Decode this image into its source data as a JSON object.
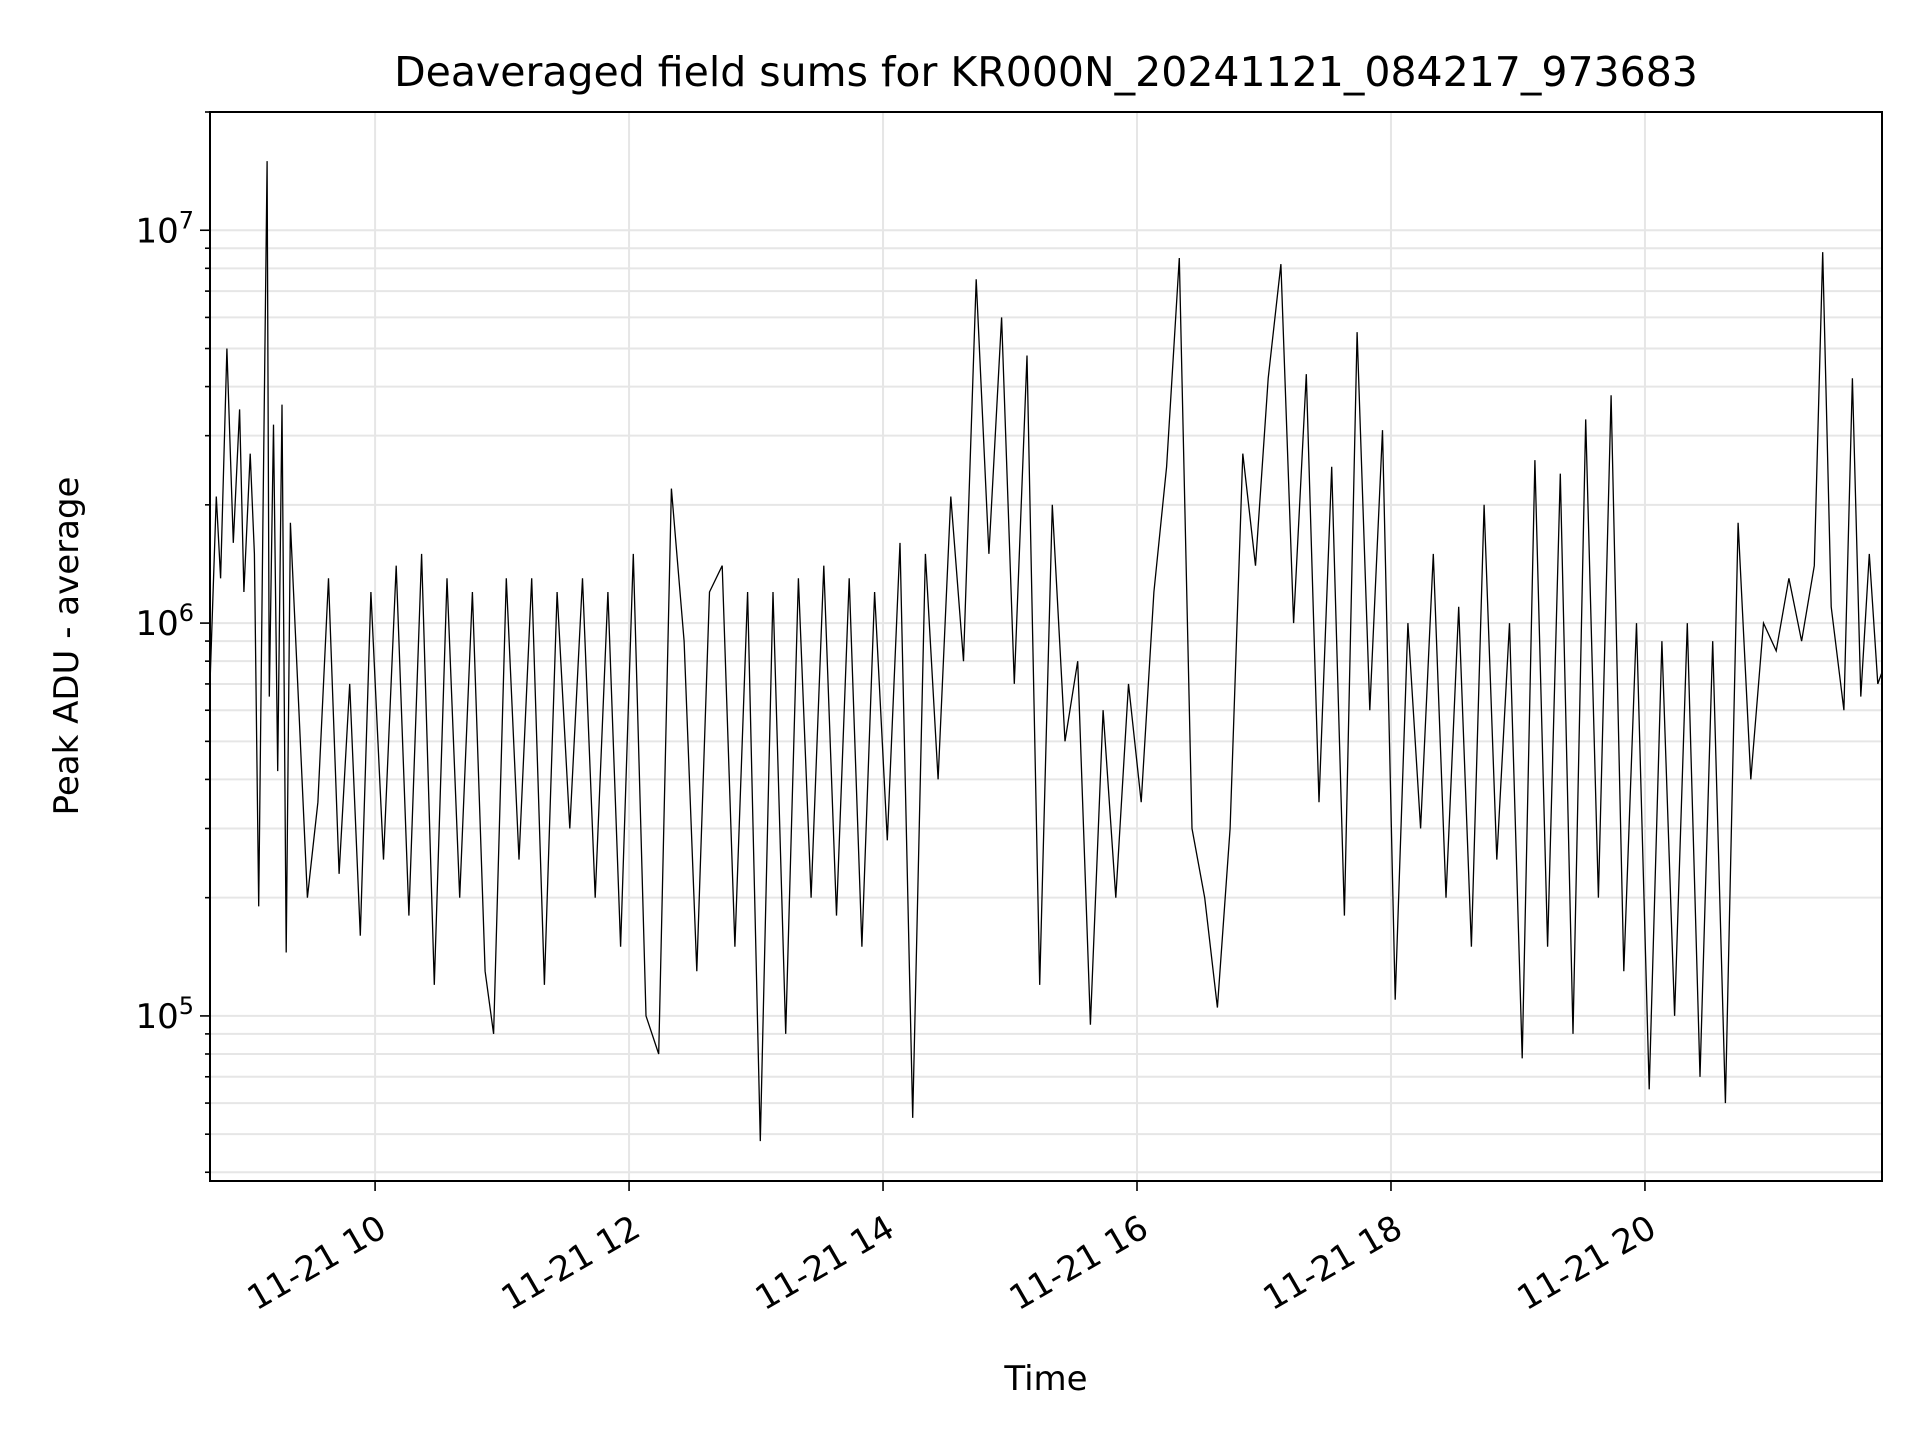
{
  "chart_data": {
    "type": "line",
    "title": "Deaveraged field sums for KR000N_20241121_084217_973683",
    "xlabel": "Time",
    "ylabel": "Peak ADU - average",
    "yscale": "log",
    "ylim": [
      38000,
      20000000
    ],
    "xlim": [
      "2024-11-21 08:42",
      "2024-11-21 21:52"
    ],
    "x_ticks": [
      "11-21 10",
      "11-21 12",
      "11-21 14",
      "11-21 16",
      "11-21 18",
      "11-21 20"
    ],
    "x_tick_times": [
      "2024-11-21 10:00",
      "2024-11-21 12:00",
      "2024-11-21 14:00",
      "2024-11-21 16:00",
      "2024-11-21 18:00",
      "2024-11-21 20:00"
    ],
    "y_ticks": [
      {
        "base": "10",
        "exp": "5",
        "value": 100000
      },
      {
        "base": "10",
        "exp": "6",
        "value": 1000000
      },
      {
        "base": "10",
        "exp": "7",
        "value": 10000000
      }
    ],
    "grid": true,
    "line_color": "#000000",
    "series": [
      {
        "values": [
          [
            "2024-11-21 08:42",
            700000
          ],
          [
            "2024-11-21 08:45",
            2100000
          ],
          [
            "2024-11-21 08:47",
            1300000
          ],
          [
            "2024-11-21 08:50",
            5000000
          ],
          [
            "2024-11-21 08:53",
            1600000
          ],
          [
            "2024-11-21 08:56",
            3500000
          ],
          [
            "2024-11-21 08:58",
            1200000
          ],
          [
            "2024-11-21 09:01",
            2700000
          ],
          [
            "2024-11-21 09:03",
            1500000
          ],
          [
            "2024-11-21 09:05",
            190000
          ],
          [
            "2024-11-21 09:07",
            1800000
          ],
          [
            "2024-11-21 09:09",
            15000000
          ],
          [
            "2024-11-21 09:10",
            650000
          ],
          [
            "2024-11-21 09:12",
            3200000
          ],
          [
            "2024-11-21 09:14",
            420000
          ],
          [
            "2024-11-21 09:16",
            3600000
          ],
          [
            "2024-11-21 09:18",
            145000
          ],
          [
            "2024-11-21 09:20",
            1800000
          ],
          [
            "2024-11-21 09:24",
            600000
          ],
          [
            "2024-11-21 09:28",
            200000
          ],
          [
            "2024-11-21 09:33",
            350000
          ],
          [
            "2024-11-21 09:38",
            1300000
          ],
          [
            "2024-11-21 09:43",
            230000
          ],
          [
            "2024-11-21 09:48",
            700000
          ],
          [
            "2024-11-21 09:53",
            160000
          ],
          [
            "2024-11-21 09:58",
            1200000
          ],
          [
            "2024-11-21 10:04",
            250000
          ],
          [
            "2024-11-21 10:10",
            1400000
          ],
          [
            "2024-11-21 10:16",
            180000
          ],
          [
            "2024-11-21 10:22",
            1500000
          ],
          [
            "2024-11-21 10:28",
            120000
          ],
          [
            "2024-11-21 10:34",
            1300000
          ],
          [
            "2024-11-21 10:40",
            200000
          ],
          [
            "2024-11-21 10:46",
            1200000
          ],
          [
            "2024-11-21 10:52",
            130000
          ],
          [
            "2024-11-21 10:56",
            90000
          ],
          [
            "2024-11-21 11:02",
            1300000
          ],
          [
            "2024-11-21 11:08",
            250000
          ],
          [
            "2024-11-21 11:14",
            1300000
          ],
          [
            "2024-11-21 11:20",
            120000
          ],
          [
            "2024-11-21 11:26",
            1200000
          ],
          [
            "2024-11-21 11:32",
            300000
          ],
          [
            "2024-11-21 11:38",
            1300000
          ],
          [
            "2024-11-21 11:44",
            200000
          ],
          [
            "2024-11-21 11:50",
            1200000
          ],
          [
            "2024-11-21 11:56",
            150000
          ],
          [
            "2024-11-21 12:02",
            1500000
          ],
          [
            "2024-11-21 12:08",
            100000
          ],
          [
            "2024-11-21 12:14",
            80000
          ],
          [
            "2024-11-21 12:20",
            2200000
          ],
          [
            "2024-11-21 12:26",
            900000
          ],
          [
            "2024-11-21 12:32",
            130000
          ],
          [
            "2024-11-21 12:38",
            1200000
          ],
          [
            "2024-11-21 12:44",
            1400000
          ],
          [
            "2024-11-21 12:50",
            150000
          ],
          [
            "2024-11-21 12:56",
            1200000
          ],
          [
            "2024-11-21 13:02",
            48000
          ],
          [
            "2024-11-21 13:08",
            1200000
          ],
          [
            "2024-11-21 13:14",
            90000
          ],
          [
            "2024-11-21 13:20",
            1300000
          ],
          [
            "2024-11-21 13:26",
            200000
          ],
          [
            "2024-11-21 13:32",
            1400000
          ],
          [
            "2024-11-21 13:38",
            180000
          ],
          [
            "2024-11-21 13:44",
            1300000
          ],
          [
            "2024-11-21 13:50",
            150000
          ],
          [
            "2024-11-21 13:56",
            1200000
          ],
          [
            "2024-11-21 14:02",
            280000
          ],
          [
            "2024-11-21 14:08",
            1600000
          ],
          [
            "2024-11-21 14:14",
            55000
          ],
          [
            "2024-11-21 14:20",
            1500000
          ],
          [
            "2024-11-21 14:26",
            400000
          ],
          [
            "2024-11-21 14:32",
            2100000
          ],
          [
            "2024-11-21 14:38",
            800000
          ],
          [
            "2024-11-21 14:44",
            7500000
          ],
          [
            "2024-11-21 14:50",
            1500000
          ],
          [
            "2024-11-21 14:56",
            6000000
          ],
          [
            "2024-11-21 15:02",
            700000
          ],
          [
            "2024-11-21 15:08",
            4800000
          ],
          [
            "2024-11-21 15:14",
            120000
          ],
          [
            "2024-11-21 15:20",
            2000000
          ],
          [
            "2024-11-21 15:26",
            500000
          ],
          [
            "2024-11-21 15:32",
            800000
          ],
          [
            "2024-11-21 15:38",
            95000
          ],
          [
            "2024-11-21 15:44",
            600000
          ],
          [
            "2024-11-21 15:50",
            200000
          ],
          [
            "2024-11-21 15:56",
            700000
          ],
          [
            "2024-11-21 16:02",
            350000
          ],
          [
            "2024-11-21 16:08",
            1200000
          ],
          [
            "2024-11-21 16:14",
            2500000
          ],
          [
            "2024-11-21 16:20",
            8500000
          ],
          [
            "2024-11-21 16:26",
            300000
          ],
          [
            "2024-11-21 16:32",
            200000
          ],
          [
            "2024-11-21 16:38",
            105000
          ],
          [
            "2024-11-21 16:44",
            300000
          ],
          [
            "2024-11-21 16:50",
            2700000
          ],
          [
            "2024-11-21 16:56",
            1400000
          ],
          [
            "2024-11-21 17:02",
            4200000
          ],
          [
            "2024-11-21 17:08",
            8200000
          ],
          [
            "2024-11-21 17:14",
            1000000
          ],
          [
            "2024-11-21 17:20",
            4300000
          ],
          [
            "2024-11-21 17:26",
            350000
          ],
          [
            "2024-11-21 17:32",
            2500000
          ],
          [
            "2024-11-21 17:38",
            180000
          ],
          [
            "2024-11-21 17:44",
            5500000
          ],
          [
            "2024-11-21 17:50",
            600000
          ],
          [
            "2024-11-21 17:56",
            3100000
          ],
          [
            "2024-11-21 18:02",
            110000
          ],
          [
            "2024-11-21 18:08",
            1000000
          ],
          [
            "2024-11-21 18:14",
            300000
          ],
          [
            "2024-11-21 18:20",
            1500000
          ],
          [
            "2024-11-21 18:26",
            200000
          ],
          [
            "2024-11-21 18:32",
            1100000
          ],
          [
            "2024-11-21 18:38",
            150000
          ],
          [
            "2024-11-21 18:44",
            2000000
          ],
          [
            "2024-11-21 18:50",
            250000
          ],
          [
            "2024-11-21 18:56",
            1000000
          ],
          [
            "2024-11-21 19:02",
            78000
          ],
          [
            "2024-11-21 19:08",
            2600000
          ],
          [
            "2024-11-21 19:14",
            150000
          ],
          [
            "2024-11-21 19:20",
            2400000
          ],
          [
            "2024-11-21 19:26",
            90000
          ],
          [
            "2024-11-21 19:32",
            3300000
          ],
          [
            "2024-11-21 19:38",
            200000
          ],
          [
            "2024-11-21 19:44",
            3800000
          ],
          [
            "2024-11-21 19:50",
            130000
          ],
          [
            "2024-11-21 19:56",
            1000000
          ],
          [
            "2024-11-21 20:02",
            65000
          ],
          [
            "2024-11-21 20:08",
            900000
          ],
          [
            "2024-11-21 20:14",
            100000
          ],
          [
            "2024-11-21 20:20",
            1000000
          ],
          [
            "2024-11-21 20:26",
            70000
          ],
          [
            "2024-11-21 20:32",
            900000
          ],
          [
            "2024-11-21 20:38",
            60000
          ],
          [
            "2024-11-21 20:44",
            1800000
          ],
          [
            "2024-11-21 20:50",
            400000
          ],
          [
            "2024-11-21 20:56",
            1000000
          ],
          [
            "2024-11-21 21:02",
            850000
          ],
          [
            "2024-11-21 21:08",
            1300000
          ],
          [
            "2024-11-21 21:14",
            900000
          ],
          [
            "2024-11-21 21:20",
            1400000
          ],
          [
            "2024-11-21 21:24",
            8800000
          ],
          [
            "2024-11-21 21:28",
            1100000
          ],
          [
            "2024-11-21 21:34",
            600000
          ],
          [
            "2024-11-21 21:38",
            4200000
          ],
          [
            "2024-11-21 21:42",
            650000
          ],
          [
            "2024-11-21 21:46",
            1500000
          ],
          [
            "2024-11-21 21:50",
            700000
          ],
          [
            "2024-11-21 21:52",
            750000
          ]
        ]
      }
    ]
  }
}
